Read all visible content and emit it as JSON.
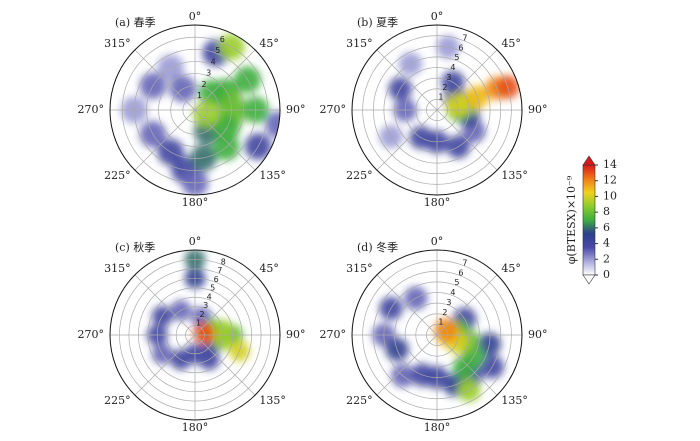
{
  "chart_data": [
    {
      "type": "polar",
      "title": "(a) 春季",
      "rlim": [
        0,
        7
      ],
      "rticks": [
        1,
        2,
        3,
        4,
        5,
        6
      ],
      "thetaticks": [
        {
          "value": 0,
          "label": "0°"
        },
        {
          "value": 45,
          "label": "45°"
        },
        {
          "value": 90,
          "label": "90°"
        },
        {
          "value": 135,
          "label": "135°"
        },
        {
          "value": 180,
          "label": "180°"
        },
        {
          "value": 225,
          "label": "225°"
        },
        {
          "value": 270,
          "label": "270°"
        },
        {
          "value": 315,
          "label": "315°"
        }
      ],
      "theta": [
        300,
        270,
        240,
        210,
        190,
        180,
        330,
        330,
        20,
        120,
        100,
        170,
        150,
        60,
        80,
        100,
        120,
        140,
        90,
        60,
        45,
        30,
        110
      ],
      "r": [
        4,
        5,
        4,
        4,
        5,
        6,
        4,
        2,
        5,
        6,
        7,
        4,
        2,
        3,
        3,
        3,
        3,
        4,
        5,
        5,
        2,
        6,
        1
      ],
      "values": [
        3,
        2,
        3,
        4,
        4,
        3,
        2,
        3,
        4,
        4,
        3,
        6,
        6,
        7,
        8,
        8,
        7,
        7,
        7,
        7,
        7,
        9,
        9
      ]
    },
    {
      "type": "polar",
      "title": "(b) 夏季",
      "rlim": [
        0,
        8
      ],
      "rticks": [
        1,
        2,
        3,
        4,
        5,
        6,
        7
      ],
      "thetaticks": [
        {
          "value": 0,
          "label": "0°"
        },
        {
          "value": 45,
          "label": "45°"
        },
        {
          "value": 90,
          "label": "90°"
        },
        {
          "value": 135,
          "label": "135°"
        },
        {
          "value": 180,
          "label": "180°"
        },
        {
          "value": 225,
          "label": "225°"
        },
        {
          "value": 270,
          "label": "270°"
        },
        {
          "value": 315,
          "label": "315°"
        }
      ],
      "theta": [
        240,
        330,
        10,
        270,
        120,
        300,
        210,
        180,
        150,
        30,
        60,
        100,
        90,
        78,
        75,
        72,
        70,
        72
      ],
      "r": [
        5,
        5,
        6,
        3,
        4,
        4,
        3,
        3,
        4,
        3,
        2,
        3,
        2,
        3,
        2,
        4,
        6,
        7
      ],
      "values": [
        2,
        2,
        2,
        3,
        3,
        4,
        4,
        4,
        4,
        4,
        5,
        5,
        8,
        9,
        10,
        11,
        12,
        13
      ]
    },
    {
      "type": "polar",
      "title": "(c) 秋季",
      "rlim": [
        0,
        9
      ],
      "rticks": [
        1,
        2,
        3,
        4,
        5,
        6,
        7,
        8
      ],
      "thetaticks": [
        {
          "value": 0,
          "label": "0°"
        },
        {
          "value": 45,
          "label": "45°"
        },
        {
          "value": 90,
          "label": "90°"
        },
        {
          "value": 135,
          "label": "135°"
        },
        {
          "value": 180,
          "label": "180°"
        },
        {
          "value": 225,
          "label": "225°"
        },
        {
          "value": 270,
          "label": "270°"
        },
        {
          "value": 315,
          "label": "315°"
        }
      ],
      "theta": [
        240,
        330,
        20,
        300,
        270,
        210,
        180,
        150,
        120,
        0,
        0,
        70,
        90,
        80,
        100,
        110,
        85,
        75
      ],
      "r": [
        4,
        3,
        2,
        4,
        4,
        3,
        2,
        3,
        2,
        6,
        8,
        2,
        4,
        3,
        3,
        5,
        1,
        1
      ],
      "values": [
        3,
        3,
        3,
        4,
        4,
        4,
        4,
        4,
        4,
        5,
        6,
        8,
        8,
        9,
        9,
        10,
        12,
        13
      ]
    },
    {
      "type": "polar",
      "title": "(d) 冬季",
      "rlim": [
        0,
        8
      ],
      "rticks": [
        1,
        2,
        3,
        4,
        5,
        6,
        7
      ],
      "thetaticks": [
        {
          "value": 0,
          "label": "0°"
        },
        {
          "value": 45,
          "label": "45°"
        },
        {
          "value": 90,
          "label": "90°"
        },
        {
          "value": 135,
          "label": "135°"
        },
        {
          "value": 180,
          "label": "180°"
        },
        {
          "value": 225,
          "label": "225°"
        },
        {
          "value": 270,
          "label": "270°"
        },
        {
          "value": 315,
          "label": "315°"
        }
      ],
      "theta": [
        270,
        220,
        330,
        300,
        200,
        180,
        140,
        120,
        60,
        250,
        160,
        100,
        140,
        120,
        80,
        100,
        150,
        110,
        90,
        60
      ],
      "r": [
        5,
        5,
        4,
        5,
        4,
        4,
        5,
        6,
        3,
        4,
        5,
        5,
        4,
        4,
        2,
        3,
        6,
        2,
        1,
        1
      ],
      "values": [
        3,
        3,
        3,
        4,
        4,
        4,
        4,
        4,
        4,
        5,
        5,
        5,
        7,
        7,
        8,
        8,
        9,
        10,
        11,
        12
      ]
    },
    {
      "type": "colorbar",
      "label": "φ(BTESX)×10⁻⁹",
      "clim": [
        0,
        14
      ],
      "ticks": [
        0,
        2,
        4,
        6,
        8,
        10,
        12,
        14
      ],
      "colormap": [
        "#ffffff",
        "#a9a9dd",
        "#4a4aa8",
        "#2c3f8c",
        "#3fae3f",
        "#8ccc2e",
        "#f0d21c",
        "#f07a18",
        "#d7191c"
      ]
    }
  ]
}
